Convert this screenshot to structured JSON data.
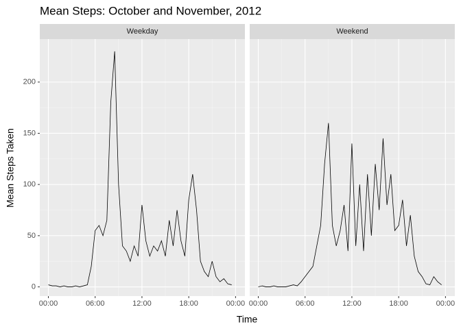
{
  "chart_data": {
    "type": "line",
    "title": "Mean Steps: October and November, 2012",
    "x_label": "Time",
    "y_label": "Mean Steps Taken",
    "x": [
      0,
      0.5,
      1,
      1.5,
      2,
      2.5,
      3,
      3.5,
      4,
      4.5,
      5,
      5.5,
      6,
      6.5,
      7,
      7.5,
      8,
      8.5,
      9,
      9.5,
      10,
      10.5,
      11,
      11.5,
      12,
      12.5,
      13,
      13.5,
      14,
      14.5,
      15,
      15.5,
      16,
      16.5,
      17,
      17.5,
      18,
      18.5,
      19,
      19.5,
      20,
      20.5,
      21,
      21.5,
      22,
      22.5,
      23,
      23.5
    ],
    "facets": [
      {
        "name": "Weekday",
        "color": "#000000",
        "values": [
          2,
          1,
          1,
          0,
          1,
          0,
          0,
          1,
          0,
          1,
          2,
          20,
          55,
          60,
          50,
          65,
          180,
          230,
          100,
          40,
          35,
          25,
          40,
          30,
          80,
          45,
          30,
          40,
          35,
          45,
          30,
          65,
          40,
          75,
          45,
          30,
          85,
          110,
          75,
          25,
          15,
          10,
          25,
          10,
          5,
          8,
          3,
          2
        ]
      },
      {
        "name": "Weekend",
        "color": "#000000",
        "values": [
          0,
          1,
          0,
          0,
          1,
          0,
          0,
          0,
          1,
          2,
          1,
          5,
          10,
          15,
          20,
          40,
          60,
          120,
          160,
          60,
          40,
          55,
          80,
          35,
          140,
          40,
          100,
          35,
          110,
          50,
          120,
          75,
          145,
          80,
          110,
          55,
          60,
          85,
          40,
          70,
          30,
          15,
          10,
          3,
          2,
          10,
          5,
          2
        ]
      }
    ],
    "xlim": [
      -1.1,
      25.2
    ],
    "xticks": [
      {
        "value": 0,
        "label": "00:00"
      },
      {
        "value": 6,
        "label": "06:00"
      },
      {
        "value": 12,
        "label": "12:00"
      },
      {
        "value": 18,
        "label": "18:00"
      },
      {
        "value": 24,
        "label": "00:00"
      }
    ],
    "ylim": [
      -9,
      242
    ],
    "yticks": [
      0,
      50,
      100,
      150,
      200
    ],
    "grid": true
  }
}
